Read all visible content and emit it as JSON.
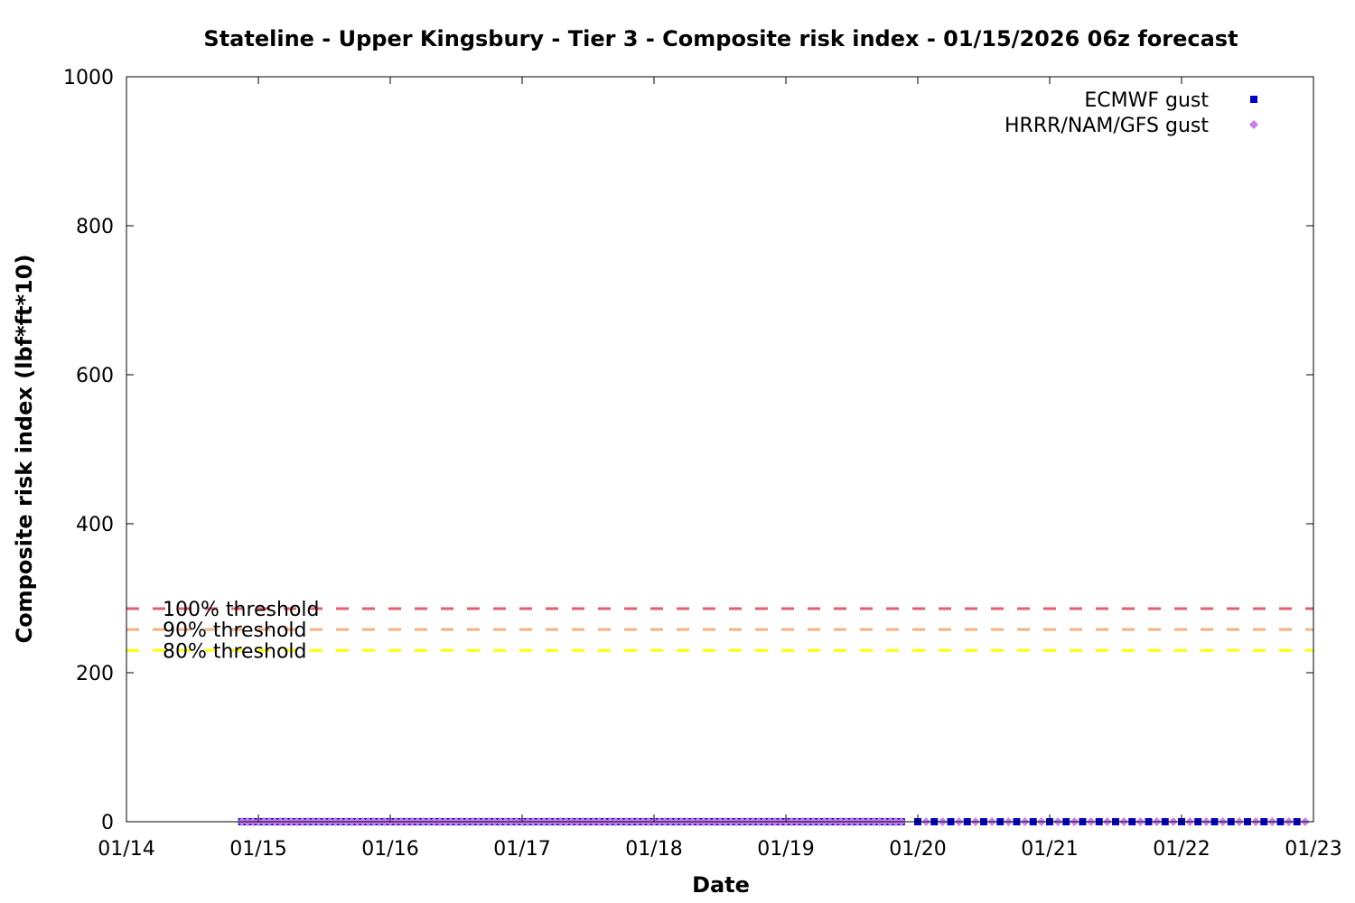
{
  "chart_data": {
    "type": "scatter",
    "title": "Stateline - Upper Kingsbury - Tier 3 - Composite risk index - 01/15/2026 06z forecast",
    "xlabel": "Date",
    "ylabel": "Composite risk index (lbf*ft*10)",
    "x_ticks": [
      "01/14",
      "01/15",
      "01/16",
      "01/17",
      "01/18",
      "01/19",
      "01/20",
      "01/21",
      "01/22",
      "01/23"
    ],
    "y_ticks": [
      "0",
      "200",
      "400",
      "600",
      "800",
      "1000"
    ],
    "xlim": [
      "2026-01-14",
      "2026-01-23"
    ],
    "ylim": [
      0,
      1000
    ],
    "grid": false,
    "legend_position": "top-right",
    "thresholds": [
      {
        "label": "100% threshold",
        "value": 286,
        "color": "#e06070"
      },
      {
        "label": "90% threshold",
        "value": 258,
        "color": "#f4b183"
      },
      {
        "label": "80% threshold",
        "value": 230,
        "color": "#ffff00"
      }
    ],
    "series": [
      {
        "name": "ECMWF gust",
        "marker": "square",
        "color": "#0000cc",
        "dense_range": [
          "2026-01-14T21:00",
          "2026-01-19T21:00"
        ],
        "dense_step_hours": 1,
        "sparse_range": [
          "2026-01-20T00:00",
          "2026-01-22T21:00"
        ],
        "sparse_step_hours": 3,
        "y": 0
      },
      {
        "name": "HRRR/NAM/GFS gust",
        "marker": "diamond",
        "color": "#c87ef0",
        "dense_range": [
          "2026-01-14T21:00",
          "2026-01-19T21:00"
        ],
        "dense_step_hours": 1,
        "sparse_range": [
          "2026-01-20T00:00",
          "2026-01-22T21:00"
        ],
        "sparse_step_hours": 3,
        "y": 0
      }
    ]
  }
}
